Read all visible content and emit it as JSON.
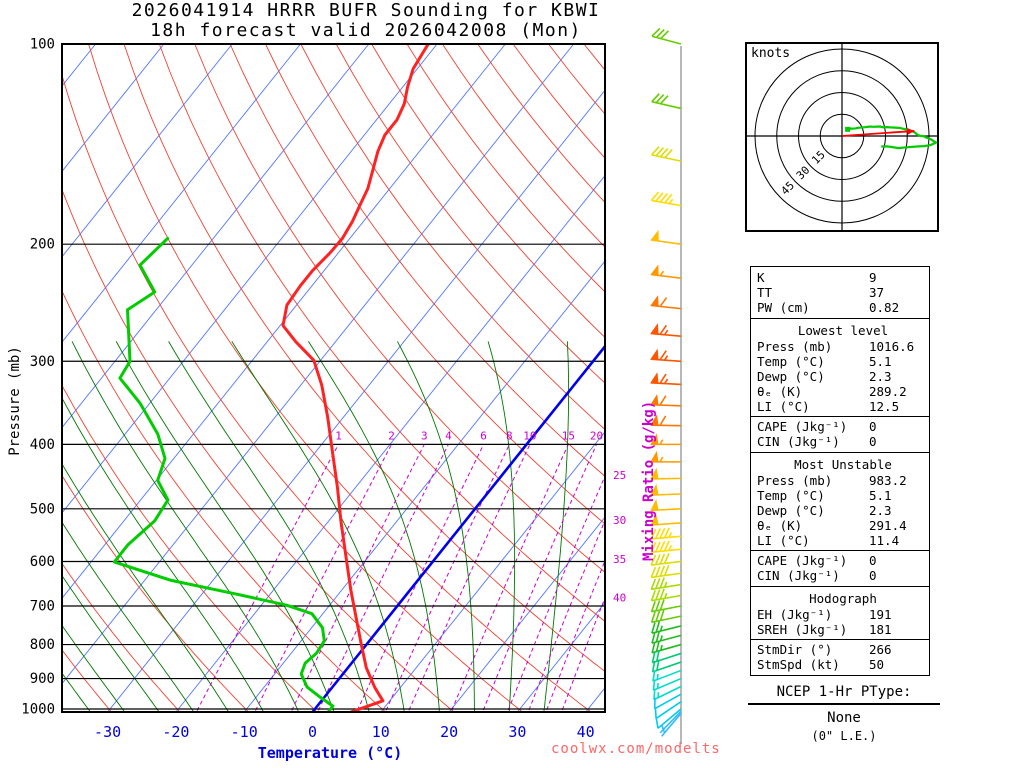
{
  "title": {
    "line1": "2026041914 HRRR BUFR Sounding for KBWI",
    "line2": "18h forecast valid 2026042008 (Mon)"
  },
  "axes": {
    "pressure_label": "Pressure (mb)",
    "pressure_ticks": [
      100,
      200,
      300,
      400,
      500,
      600,
      700,
      800,
      900,
      1000
    ],
    "temp_label": "Temperature (°C)",
    "temp_ticks": [
      -30,
      -20,
      -10,
      0,
      10,
      20,
      30,
      40
    ],
    "mixing_ratio_label": "Mixing Ratio (g/kg)",
    "mixing_ratio_ticks_top": [
      1,
      2,
      3,
      4,
      6,
      8,
      10,
      15,
      20
    ],
    "mixing_ratio_ticks_right": [
      25,
      30,
      35,
      40
    ]
  },
  "watermark": "coolwx.com/modelts",
  "hodograph": {
    "units_label": "knots",
    "ring_labels": [
      15,
      30,
      45
    ],
    "rings_kt": [
      15,
      30,
      45,
      60
    ]
  },
  "panel": {
    "summary": [
      [
        "K",
        "9"
      ],
      [
        "TT",
        "37"
      ],
      [
        "PW (cm)",
        "0.82"
      ]
    ],
    "sections": [
      {
        "header": "Lowest level",
        "groups": [
          [
            [
              "Press (mb)",
              "1016.6"
            ],
            [
              "Temp (°C)",
              "5.1"
            ],
            [
              "Dewp (°C)",
              "2.3"
            ],
            [
              "θₑ (K)",
              "289.2"
            ],
            [
              "LI (°C)",
              "12.5"
            ]
          ],
          [
            [
              "CAPE (Jkg⁻¹)",
              "0"
            ],
            [
              "CIN (Jkg⁻¹)",
              "0"
            ]
          ]
        ]
      },
      {
        "header": "Most Unstable",
        "groups": [
          [
            [
              "Press (mb)",
              "983.2"
            ],
            [
              "Temp (°C)",
              "5.1"
            ],
            [
              "Dewp (°C)",
              "2.3"
            ],
            [
              "θₑ (K)",
              "291.4"
            ],
            [
              "LI (°C)",
              "11.4"
            ]
          ],
          [
            [
              "CAPE (Jkg⁻¹)",
              "0"
            ],
            [
              "CIN (Jkg⁻¹)",
              "0"
            ]
          ]
        ]
      },
      {
        "header": "Hodograph",
        "groups": [
          [
            [
              "EH (Jkg⁻¹)",
              "191"
            ],
            [
              "SREH (Jkg⁻¹)",
              "181"
            ]
          ],
          [
            [
              "StmDir (°)",
              "266"
            ],
            [
              "StmSpd (kt)",
              "50"
            ]
          ]
        ]
      }
    ]
  },
  "ptype": {
    "title": "NCEP 1-Hr PType:",
    "value": "None",
    "note": "(0\" L.E.)"
  },
  "colors": {
    "temperature": "#ff2222",
    "dewpoint": "#00cc00",
    "isotherm": "#5577ff",
    "dry_adiabat": "#ee4433",
    "moist_adiabat": "#007700",
    "mixing_ratio": "#cc00cc",
    "freezing_line": "#0000ee",
    "temp_axis": "#0000dd",
    "hodograph_trace": "#00cc00",
    "storm_vector": "#ff0000",
    "barb_axis": "#999999"
  },
  "chart_data": {
    "type": "skewt_sounding",
    "model": "HRRR BUFR",
    "station": "KBWI",
    "run": "2026041914",
    "forecast_hour": 18,
    "valid": "2026042008 (Mon)",
    "pressure_axis_mb": [
      100,
      1050
    ],
    "temp_axis_c": [
      -30,
      40
    ],
    "isotherm_step_c": 10,
    "dry_adiabat_step_k": 10,
    "moist_adiabat_step_c": 5,
    "mixing_ratio_lines": [
      1,
      2,
      3,
      4,
      6,
      8,
      10,
      15,
      20,
      25,
      30,
      35,
      40
    ],
    "temperature_profile": [
      [
        1017,
        5.1
      ],
      [
        972,
        9.0
      ],
      [
        929,
        6.3
      ],
      [
        867,
        2.7
      ],
      [
        801,
        -0.7
      ],
      [
        730,
        -4.6
      ],
      [
        662,
        -8.7
      ],
      [
        593,
        -13.1
      ],
      [
        523,
        -18.1
      ],
      [
        465,
        -22.6
      ],
      [
        411,
        -27.5
      ],
      [
        365,
        -32.2
      ],
      [
        326,
        -36.9
      ],
      [
        299,
        -41.0
      ],
      [
        280,
        -45.9
      ],
      [
        265,
        -49.6
      ],
      [
        247,
        -51.4
      ],
      [
        231,
        -51.7
      ],
      [
        219,
        -51.7
      ],
      [
        206,
        -51.2
      ],
      [
        196,
        -51.1
      ],
      [
        185,
        -51.6
      ],
      [
        175,
        -52.4
      ],
      [
        165,
        -53.2
      ],
      [
        155,
        -54.6
      ],
      [
        145,
        -56.1
      ],
      [
        137,
        -57.0
      ],
      [
        130,
        -57.0
      ],
      [
        123,
        -57.8
      ],
      [
        116,
        -59.3
      ],
      [
        109,
        -60.6
      ],
      [
        100,
        -61.3
      ]
    ],
    "dewpoint_profile": [
      [
        1017,
        2.3
      ],
      [
        990,
        2.3
      ],
      [
        959,
        -0.7
      ],
      [
        927,
        -3.7
      ],
      [
        886,
        -6.1
      ],
      [
        853,
        -6.8
      ],
      [
        824,
        -6.3
      ],
      [
        790,
        -6.6
      ],
      [
        755,
        -8.4
      ],
      [
        719,
        -11.6
      ],
      [
        698,
        -16.3
      ],
      [
        671,
        -25.2
      ],
      [
        640,
        -36.3
      ],
      [
        601,
        -46.6
      ],
      [
        566,
        -46.6
      ],
      [
        521,
        -45.5
      ],
      [
        485,
        -46.0
      ],
      [
        453,
        -49.8
      ],
      [
        420,
        -51.3
      ],
      [
        386,
        -55.2
      ],
      [
        347,
        -61.4
      ],
      [
        318,
        -67.3
      ],
      [
        300,
        -67.8
      ],
      [
        251,
        -74.2
      ],
      [
        236,
        -72.3
      ],
      [
        215,
        -77.6
      ],
      [
        196,
        -76.7
      ]
    ],
    "winds": [
      [
        100,
        285,
        28
      ],
      [
        125,
        283,
        32
      ],
      [
        150,
        282,
        40
      ],
      [
        175,
        280,
        45
      ],
      [
        200,
        278,
        52
      ],
      [
        225,
        277,
        57
      ],
      [
        250,
        276,
        61
      ],
      [
        275,
        275,
        63
      ],
      [
        300,
        274,
        65
      ],
      [
        325,
        273,
        63
      ],
      [
        350,
        272,
        61
      ],
      [
        375,
        271,
        58
      ],
      [
        400,
        270,
        56
      ],
      [
        425,
        270,
        54
      ],
      [
        450,
        269,
        52
      ],
      [
        475,
        268,
        51
      ],
      [
        500,
        267,
        50
      ],
      [
        525,
        266,
        48
      ],
      [
        550,
        265,
        46
      ],
      [
        575,
        264,
        44
      ],
      [
        600,
        263,
        42
      ],
      [
        625,
        262,
        40
      ],
      [
        650,
        261,
        37
      ],
      [
        675,
        260,
        34
      ],
      [
        700,
        259,
        32
      ],
      [
        725,
        258,
        29
      ],
      [
        750,
        256,
        27
      ],
      [
        775,
        255,
        25
      ],
      [
        800,
        254,
        23
      ],
      [
        825,
        252,
        21
      ],
      [
        850,
        251,
        20
      ],
      [
        875,
        249,
        17
      ],
      [
        900,
        247,
        15
      ],
      [
        925,
        244,
        13
      ],
      [
        950,
        241,
        11
      ],
      [
        975,
        236,
        9
      ],
      [
        1000,
        230,
        8
      ],
      [
        1008,
        224,
        7
      ],
      [
        1015,
        220,
        6
      ]
    ],
    "wind_speed_colors": [
      [
        0,
        "#33bbff"
      ],
      [
        8,
        "#00ccee"
      ],
      [
        13,
        "#00ddcc"
      ],
      [
        18,
        "#00cc77"
      ],
      [
        23,
        "#22bb22"
      ],
      [
        28,
        "#66cc00"
      ],
      [
        33,
        "#aadd00"
      ],
      [
        38,
        "#dddd00"
      ],
      [
        43,
        "#ffdd00"
      ],
      [
        48,
        "#ffbb00"
      ],
      [
        53,
        "#ff9900"
      ],
      [
        58,
        "#ff7700"
      ],
      [
        63,
        "#ff5500"
      ]
    ],
    "storm_motion": {
      "dir_deg": 266,
      "spd_kt": 50
    },
    "indices": {
      "K": 9,
      "TT": 37,
      "PW_cm": 0.82,
      "lowest_level": {
        "press_mb": 1016.6,
        "temp_c": 5.1,
        "dewp_c": 2.3,
        "theta_e_k": 289.2,
        "li_c": 12.5,
        "cape_jkg": 0,
        "cin_jkg": 0
      },
      "most_unstable": {
        "press_mb": 983.2,
        "temp_c": 5.1,
        "dewp_c": 2.3,
        "theta_e_k": 291.4,
        "li_c": 11.4,
        "cape_jkg": 0,
        "cin_jkg": 0
      },
      "hodograph": {
        "eh_jkg": 191,
        "sreh_jkg": 181,
        "stm_dir_deg": 266,
        "stm_spd_kt": 50
      }
    }
  }
}
